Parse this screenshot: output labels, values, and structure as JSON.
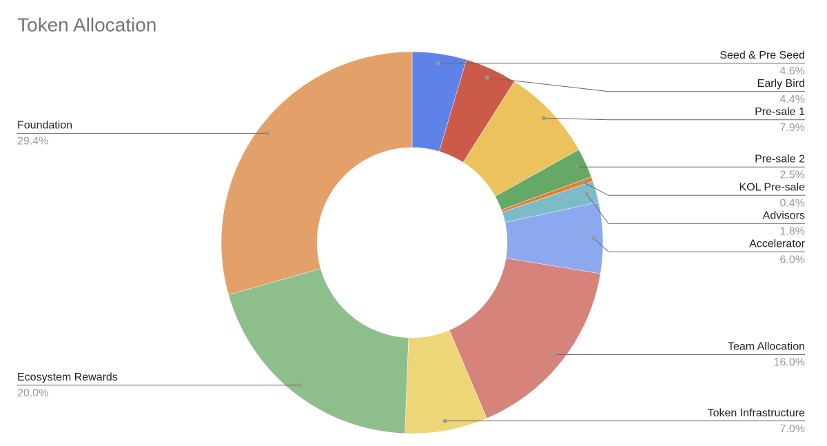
{
  "chart_data": {
    "type": "donut",
    "title": "Token Allocation",
    "categories": [
      "Seed & Pre Seed",
      "Early Bird",
      "Pre-sale 1",
      "Pre-sale 2",
      "KOL Pre-sale",
      "Advisors",
      "Accelerator",
      "Team Allocation",
      "Token Infrastructure",
      "Ecosystem Rewards",
      "Foundation"
    ],
    "values": [
      4.6,
      4.4,
      7.9,
      2.5,
      0.4,
      1.8,
      6.0,
      16.0,
      7.0,
      20.0,
      29.4
    ],
    "value_labels": [
      "4.6%",
      "4.4%",
      "7.9%",
      "2.5%",
      "0.4%",
      "1.8%",
      "6.0%",
      "16.0%",
      "7.0%",
      "20.0%",
      "29.4%"
    ],
    "colors": [
      "#5f82e8",
      "#cc5a48",
      "#ecc25c",
      "#66a866",
      "#e87e33",
      "#7bbcc6",
      "#8ca8ee",
      "#d5837b",
      "#eed577",
      "#8fbe8d",
      "#e3a068"
    ]
  }
}
